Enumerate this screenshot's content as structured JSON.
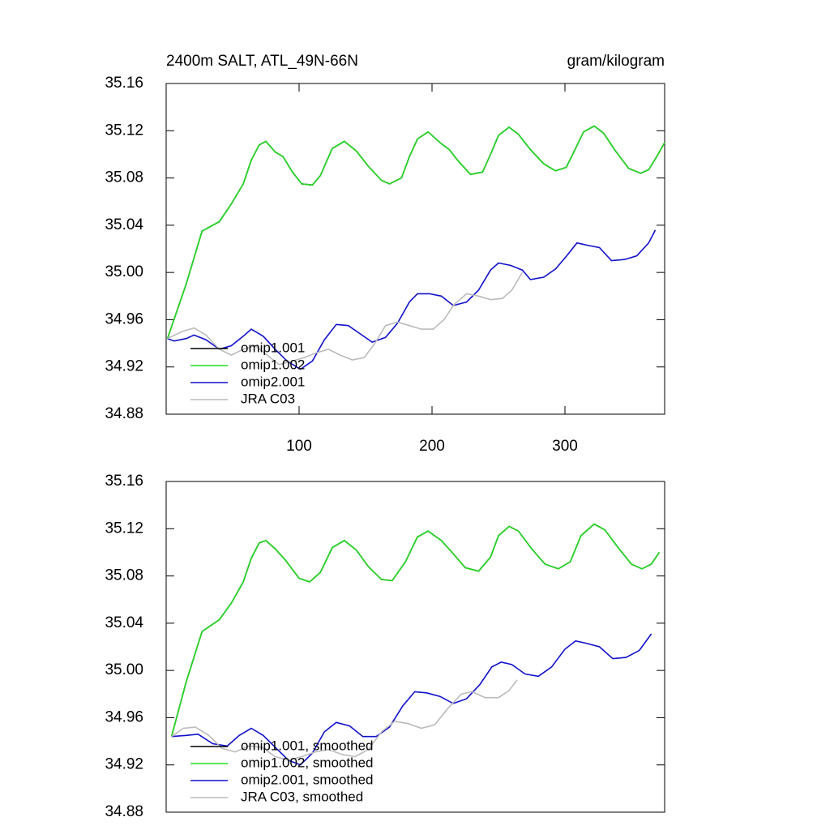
{
  "chart_data": [
    {
      "type": "line",
      "title": "2400m SALT, ATL_49N-66N",
      "subtitle": "gram/kilogram",
      "xlim": [
        0,
        375
      ],
      "xticks": [
        100,
        200,
        300
      ],
      "ylim": [
        34.88,
        35.16
      ],
      "yticks": [
        34.88,
        34.92,
        34.96,
        {
          "value": 35,
          "label": "35.00"
        },
        35.04,
        35.08,
        35.12,
        35.16
      ],
      "legend": "lower left",
      "series": [
        {
          "name": "omip1.001",
          "color": "#000000",
          "x": [
            1,
            15,
            27,
            40,
            49,
            58,
            64,
            70,
            75,
            82,
            88,
            95,
            102,
            110,
            116,
            125,
            134,
            143,
            152,
            162,
            168,
            177,
            183,
            189,
            197,
            207,
            213,
            220,
            229,
            238,
            244,
            250,
            258,
            265,
            274,
            284,
            293,
            301,
            308,
            314,
            322,
            329,
            338,
            348,
            357,
            363,
            369,
            375
          ],
          "values": [
            34.944,
            34.99,
            35.035,
            35.043,
            35.058,
            35.075,
            35.095,
            35.108,
            35.111,
            35.102,
            35.098,
            35.085,
            35.075,
            35.074,
            35.082,
            35.105,
            35.111,
            35.103,
            35.09,
            35.078,
            35.075,
            35.08,
            35.098,
            35.113,
            35.119,
            35.109,
            35.104,
            35.094,
            35.083,
            35.085,
            35.1,
            35.116,
            35.123,
            35.117,
            35.104,
            35.092,
            35.086,
            35.089,
            35.105,
            35.119,
            35.124,
            35.118,
            35.103,
            35.088,
            35.084,
            35.087,
            35.098,
            35.11
          ]
        },
        {
          "name": "omip1.002",
          "color": "#22dd22",
          "x": [
            1,
            15,
            27,
            40,
            49,
            58,
            64,
            70,
            75,
            82,
            88,
            95,
            102,
            110,
            116,
            125,
            134,
            143,
            152,
            162,
            168,
            177,
            183,
            189,
            197,
            207,
            213,
            220,
            229,
            238,
            244,
            250,
            258,
            265,
            274,
            284,
            293,
            301,
            308,
            314,
            322,
            329,
            338,
            348,
            357,
            363,
            369,
            375
          ],
          "values": [
            34.944,
            34.99,
            35.035,
            35.043,
            35.058,
            35.075,
            35.095,
            35.108,
            35.111,
            35.102,
            35.098,
            35.085,
            35.075,
            35.074,
            35.082,
            35.105,
            35.111,
            35.103,
            35.09,
            35.078,
            35.075,
            35.08,
            35.098,
            35.113,
            35.119,
            35.109,
            35.104,
            35.094,
            35.083,
            35.085,
            35.1,
            35.116,
            35.123,
            35.117,
            35.104,
            35.092,
            35.086,
            35.089,
            35.105,
            35.119,
            35.124,
            35.118,
            35.103,
            35.088,
            35.084,
            35.087,
            35.098,
            35.11
          ]
        },
        {
          "name": "omip2.001",
          "color": "#1111cc",
          "x": [
            1,
            6,
            15,
            21,
            30,
            40,
            49,
            58,
            64,
            73,
            82,
            91,
            101,
            110,
            119,
            128,
            137,
            146,
            155,
            165,
            174,
            183,
            189,
            198,
            207,
            216,
            226,
            235,
            244,
            250,
            259,
            268,
            274,
            284,
            293,
            302,
            309,
            317,
            326,
            335,
            345,
            354,
            363,
            368
          ],
          "values": [
            34.944,
            34.942,
            34.944,
            34.947,
            34.943,
            34.935,
            34.938,
            34.946,
            34.952,
            34.946,
            34.935,
            34.925,
            34.918,
            34.925,
            34.943,
            34.956,
            34.955,
            34.948,
            34.941,
            34.945,
            34.957,
            34.975,
            34.982,
            34.982,
            34.98,
            34.972,
            34.975,
            34.985,
            35.002,
            35.008,
            35.006,
            35.002,
            34.994,
            34.996,
            35.003,
            35.015,
            35.025,
            35.023,
            35.021,
            35.01,
            35.011,
            35.014,
            35.025,
            35.036
          ]
        },
        {
          "name": "JRA C03",
          "color": "#bbbbbb",
          "x": [
            1,
            12,
            21,
            30,
            40,
            49,
            58,
            67,
            76,
            85,
            95,
            104,
            113,
            122,
            131,
            140,
            149,
            157,
            165,
            174,
            183,
            192,
            201,
            209,
            216,
            226,
            235,
            244,
            253,
            260,
            268
          ],
          "values": [
            34.944,
            34.95,
            34.953,
            34.947,
            34.935,
            34.93,
            34.935,
            34.938,
            34.93,
            34.922,
            34.925,
            34.928,
            34.932,
            34.935,
            34.93,
            34.926,
            34.928,
            34.94,
            34.955,
            34.958,
            34.955,
            34.952,
            34.952,
            34.96,
            34.972,
            34.982,
            34.98,
            34.977,
            34.978,
            34.985,
            35.0
          ]
        }
      ]
    },
    {
      "type": "line",
      "xlim": [
        0,
        375
      ],
      "ylim": [
        34.88,
        35.16
      ],
      "yticks": [
        34.88,
        34.92,
        34.96,
        {
          "value": 35,
          "label": "35.00"
        },
        35.04,
        35.08,
        35.12,
        35.16
      ],
      "legend": "lower left",
      "series": [
        {
          "name": "omip1.001, smoothed",
          "color": "#000000",
          "x": [
            4,
            15,
            27,
            40,
            49,
            58,
            64,
            70,
            75,
            82,
            90,
            100,
            108,
            116,
            125,
            134,
            143,
            152,
            162,
            170,
            180,
            189,
            197,
            207,
            215,
            225,
            235,
            244,
            250,
            258,
            265,
            275,
            285,
            295,
            304,
            312,
            322,
            330,
            340,
            350,
            358,
            365,
            371
          ],
          "values": [
            34.944,
            34.99,
            35.033,
            35.043,
            35.057,
            35.075,
            35.095,
            35.108,
            35.11,
            35.103,
            35.093,
            35.078,
            35.075,
            35.083,
            35.104,
            35.11,
            35.102,
            35.088,
            35.077,
            35.076,
            35.092,
            35.113,
            35.118,
            35.11,
            35.1,
            35.087,
            35.084,
            35.096,
            35.114,
            35.122,
            35.118,
            35.103,
            35.09,
            35.086,
            35.092,
            35.114,
            35.124,
            35.119,
            35.104,
            35.09,
            35.086,
            35.09,
            35.1
          ]
        },
        {
          "name": "omip1.002, smoothed",
          "color": "#22dd22",
          "x": [
            4,
            15,
            27,
            40,
            49,
            58,
            64,
            70,
            75,
            82,
            90,
            100,
            108,
            116,
            125,
            134,
            143,
            152,
            162,
            170,
            180,
            189,
            197,
            207,
            215,
            225,
            235,
            244,
            250,
            258,
            265,
            275,
            285,
            295,
            304,
            312,
            322,
            330,
            340,
            350,
            358,
            365,
            371
          ],
          "values": [
            34.944,
            34.99,
            35.033,
            35.043,
            35.057,
            35.075,
            35.095,
            35.108,
            35.11,
            35.103,
            35.093,
            35.078,
            35.075,
            35.083,
            35.104,
            35.11,
            35.102,
            35.088,
            35.077,
            35.076,
            35.092,
            35.113,
            35.118,
            35.11,
            35.1,
            35.087,
            35.084,
            35.096,
            35.114,
            35.122,
            35.118,
            35.103,
            35.09,
            35.086,
            35.092,
            35.114,
            35.124,
            35.119,
            35.104,
            35.09,
            35.086,
            35.09,
            35.1
          ]
        },
        {
          "name": "omip2.001, smoothed",
          "color": "#1111cc",
          "x": [
            4,
            15,
            24,
            35,
            46,
            55,
            64,
            73,
            82,
            92,
            101,
            110,
            119,
            128,
            138,
            148,
            158,
            168,
            178,
            187,
            196,
            206,
            216,
            226,
            236,
            245,
            252,
            260,
            270,
            280,
            290,
            300,
            308,
            316,
            326,
            336,
            346,
            356,
            365
          ],
          "values": [
            34.944,
            34.945,
            34.946,
            34.938,
            34.936,
            34.945,
            34.951,
            34.945,
            34.935,
            34.924,
            34.92,
            34.93,
            34.948,
            34.956,
            34.953,
            34.944,
            34.944,
            34.952,
            34.97,
            34.982,
            34.981,
            34.978,
            34.972,
            34.976,
            34.988,
            35.003,
            35.007,
            35.005,
            34.997,
            34.995,
            35.003,
            35.018,
            35.025,
            35.023,
            35.02,
            35.01,
            35.011,
            35.017,
            35.031
          ]
        },
        {
          "name": "JRA C03, smoothed",
          "color": "#bbbbbb",
          "x": [
            4,
            13,
            22,
            32,
            42,
            52,
            62,
            72,
            82,
            92,
            102,
            112,
            122,
            132,
            142,
            152,
            162,
            172,
            182,
            192,
            202,
            212,
            222,
            230,
            240,
            250,
            258,
            264
          ],
          "values": [
            34.944,
            34.951,
            34.952,
            34.945,
            34.934,
            34.931,
            34.936,
            34.935,
            34.927,
            34.924,
            34.927,
            34.931,
            34.933,
            34.929,
            34.927,
            34.933,
            34.948,
            34.957,
            34.955,
            34.951,
            34.954,
            34.968,
            34.98,
            34.982,
            34.977,
            34.977,
            34.983,
            34.992
          ]
        }
      ]
    }
  ]
}
